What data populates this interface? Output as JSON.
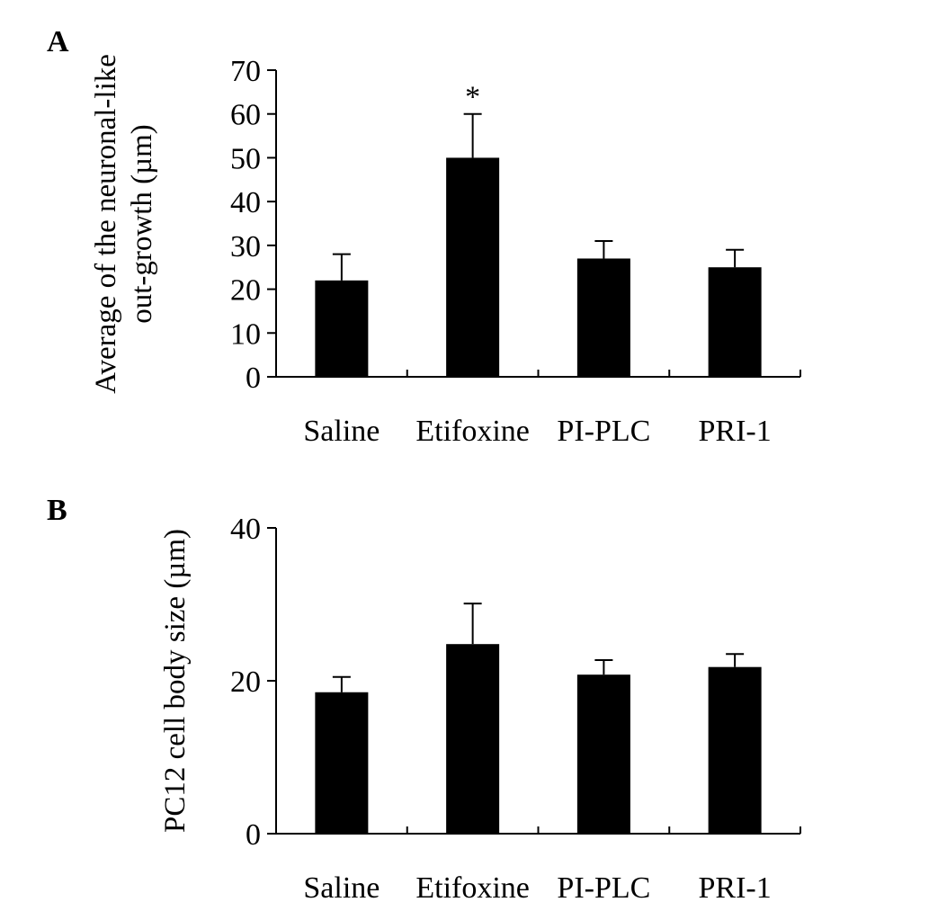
{
  "chart_data": [
    {
      "type": "bar",
      "panel_label": "A",
      "title": "",
      "categories": [
        "Saline",
        "Etifoxine",
        "PI-PLC",
        "PRI-1"
      ],
      "values": [
        22,
        50,
        27,
        25
      ],
      "error": [
        6,
        10,
        4,
        4
      ],
      "annotations": [
        "",
        "*",
        "",
        ""
      ],
      "ylabel_lines": [
        "Average of the neuronal-like",
        "out-growth (µm)"
      ],
      "xlabel": "",
      "yticks": [
        0,
        10,
        20,
        30,
        40,
        50,
        60,
        70
      ],
      "ylim": [
        0,
        70
      ],
      "grid": false,
      "bar_color": "#000000"
    },
    {
      "type": "bar",
      "panel_label": "B",
      "title": "",
      "categories": [
        "Saline",
        "Etifoxine",
        "PI-PLC",
        "PRI-1"
      ],
      "values": [
        18.5,
        24.8,
        20.8,
        21.8
      ],
      "error": [
        2,
        5.3,
        1.9,
        1.7
      ],
      "annotations": [
        "",
        "",
        "",
        ""
      ],
      "ylabel_lines": [
        "PC12 cell body size (µm)"
      ],
      "xlabel": "",
      "yticks": [
        0,
        20,
        40
      ],
      "ylim": [
        0,
        40
      ],
      "grid": false,
      "bar_color": "#000000"
    }
  ]
}
